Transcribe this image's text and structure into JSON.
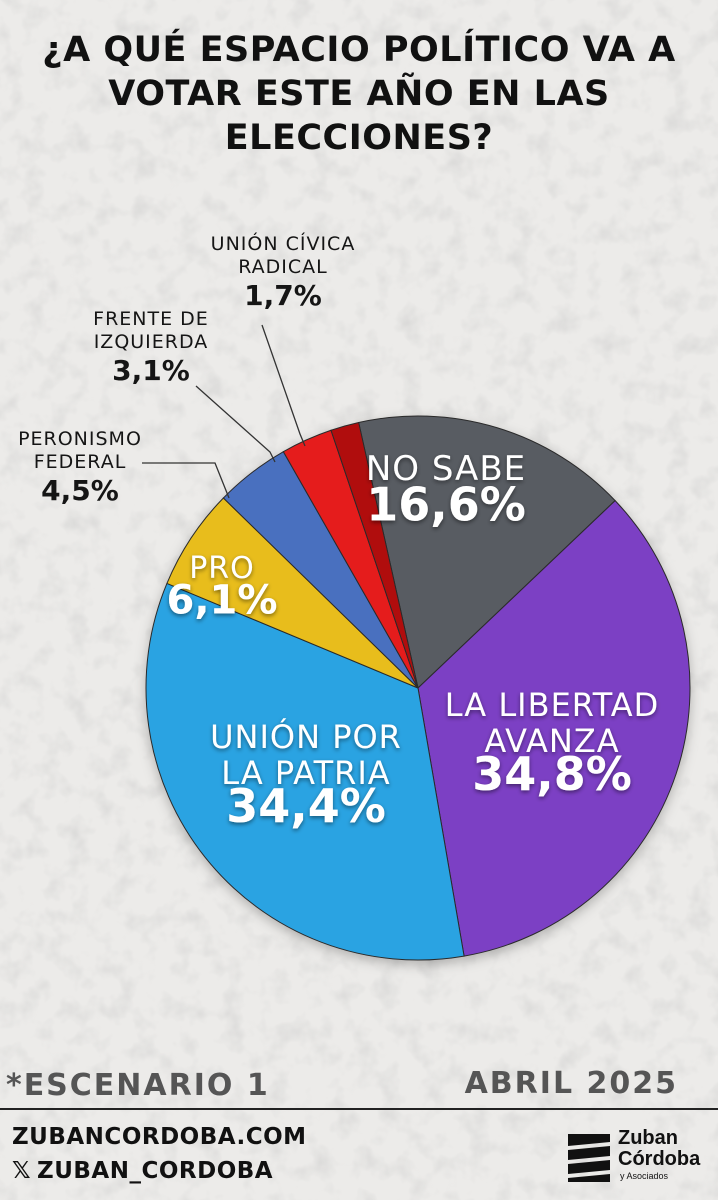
{
  "title": {
    "line1": "¿A QUÉ ESPACIO POLÍTICO VA A",
    "line2": "VOTAR ESTE AÑO EN LAS",
    "line3": "ELECCIONES?"
  },
  "chart_data": {
    "type": "pie",
    "title": "¿A QUÉ ESPACIO POLÍTICO VA A VOTAR ESTE AÑO EN LAS ELECCIONES?",
    "slices": [
      {
        "name_lines": [
          "NO SABE"
        ],
        "value": 16.6,
        "display": "16,6%",
        "color": "#585b62",
        "label": "inside"
      },
      {
        "name_lines": [
          "LA LIBERTAD",
          "AVANZA"
        ],
        "value": 34.8,
        "display": "34,8%",
        "color": "#7c3fc4",
        "label": "inside"
      },
      {
        "name_lines": [
          "UNIÓN POR",
          "LA PATRIA"
        ],
        "value": 34.4,
        "display": "34,4%",
        "color": "#2aa3e2",
        "label": "inside"
      },
      {
        "name_lines": [
          "PRO"
        ],
        "value": 6.1,
        "display": "6,1%",
        "color": "#e8bd1a",
        "label": "inside"
      },
      {
        "name_lines": [
          "PERONISMO",
          "FEDERAL"
        ],
        "value": 4.5,
        "display": "4,5%",
        "color": "#4a6fbf",
        "label": "outside"
      },
      {
        "name_lines": [
          "FRENTE DE",
          "IZQUIERDA"
        ],
        "value": 3.1,
        "display": "3,1%",
        "color": "#e51c1c",
        "label": "outside"
      },
      {
        "name_lines": [
          "UNIÓN CÍVICA",
          "RADICAL"
        ],
        "value": 1.7,
        "display": "1,7%",
        "color": "#b01010",
        "label": "outside"
      }
    ],
    "legend": "none"
  },
  "footer": {
    "scenario": "*ESCENARIO 1",
    "date": "ABRIL 2025",
    "website": "ZUBANCORDOBA.COM",
    "social_icon": "x-icon",
    "social_symbol": "𝕏",
    "social": "ZUBAN_CORDOBA",
    "logo_line1": "Zuban",
    "logo_line2": "Córdoba",
    "logo_sub": "y Asociados"
  }
}
